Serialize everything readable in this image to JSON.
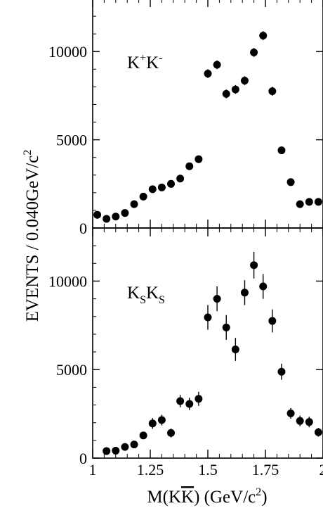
{
  "figure": {
    "ylabel": "EVENTS / 0.040GeV/c",
    "ylabel_sup": "2",
    "xlabel_pre": "M(K",
    "xlabel_kbar": "K",
    "xlabel_post": ") (GeV/c",
    "xlabel_sup": "2",
    "xlabel_close": ")",
    "marker_color": "#000000"
  },
  "chart_data": [
    {
      "type": "scatter",
      "panel": "top",
      "label": {
        "base1": "K",
        "sup1": "+",
        "base2": "K",
        "sup2": "-"
      },
      "xlim": [
        1.0,
        2.0
      ],
      "ylim": [
        0,
        13000
      ],
      "y_ticks": [
        0,
        5000,
        10000
      ],
      "x_ticks": [
        1.0,
        1.25,
        1.5,
        1.75,
        2.0
      ],
      "x_tick_labels": [],
      "y_tick_labels": [
        "0",
        "5000",
        "10000"
      ],
      "grid": false,
      "points": [
        {
          "x": 1.02,
          "y": 750,
          "err": 100
        },
        {
          "x": 1.06,
          "y": 520,
          "err": 100
        },
        {
          "x": 1.1,
          "y": 650,
          "err": 100
        },
        {
          "x": 1.14,
          "y": 850,
          "err": 100
        },
        {
          "x": 1.18,
          "y": 1350,
          "err": 100
        },
        {
          "x": 1.22,
          "y": 1780,
          "err": 100
        },
        {
          "x": 1.26,
          "y": 2200,
          "err": 110
        },
        {
          "x": 1.3,
          "y": 2300,
          "err": 110
        },
        {
          "x": 1.34,
          "y": 2500,
          "err": 110
        },
        {
          "x": 1.38,
          "y": 2800,
          "err": 120
        },
        {
          "x": 1.42,
          "y": 3500,
          "err": 120
        },
        {
          "x": 1.46,
          "y": 3900,
          "err": 150
        },
        {
          "x": 1.5,
          "y": 8750,
          "err": 250
        },
        {
          "x": 1.54,
          "y": 9250,
          "err": 250
        },
        {
          "x": 1.58,
          "y": 7600,
          "err": 250
        },
        {
          "x": 1.62,
          "y": 7850,
          "err": 250
        },
        {
          "x": 1.66,
          "y": 8350,
          "err": 250
        },
        {
          "x": 1.7,
          "y": 9950,
          "err": 250
        },
        {
          "x": 1.74,
          "y": 10900,
          "err": 250
        },
        {
          "x": 1.78,
          "y": 7750,
          "err": 250
        },
        {
          "x": 1.82,
          "y": 4400,
          "err": 120
        },
        {
          "x": 1.86,
          "y": 2600,
          "err": 110
        },
        {
          "x": 1.9,
          "y": 1350,
          "err": 100
        },
        {
          "x": 1.94,
          "y": 1480,
          "err": 100
        },
        {
          "x": 1.98,
          "y": 1480,
          "err": 100
        }
      ]
    },
    {
      "type": "scatter",
      "panel": "bottom",
      "label": {
        "base1": "K",
        "sub1": "S",
        "base2": "K",
        "sub2": "S"
      },
      "xlim": [
        1.0,
        2.0
      ],
      "ylim": [
        0,
        13000
      ],
      "y_ticks": [
        0,
        5000,
        10000
      ],
      "x_ticks": [
        1.0,
        1.25,
        1.5,
        1.75,
        2.0
      ],
      "x_tick_labels": [
        "1",
        "1.25",
        "1.5",
        "1.75",
        "2"
      ],
      "y_tick_labels": [
        "0",
        "5000",
        "10000"
      ],
      "grid": false,
      "points": [
        {
          "x": 1.06,
          "y": 400,
          "err": 150
        },
        {
          "x": 1.1,
          "y": 420,
          "err": 150
        },
        {
          "x": 1.14,
          "y": 630,
          "err": 150
        },
        {
          "x": 1.18,
          "y": 770,
          "err": 150
        },
        {
          "x": 1.22,
          "y": 1280,
          "err": 200
        },
        {
          "x": 1.26,
          "y": 1960,
          "err": 300
        },
        {
          "x": 1.3,
          "y": 2150,
          "err": 300
        },
        {
          "x": 1.34,
          "y": 1420,
          "err": 250
        },
        {
          "x": 1.38,
          "y": 3220,
          "err": 350
        },
        {
          "x": 1.42,
          "y": 3060,
          "err": 350
        },
        {
          "x": 1.46,
          "y": 3350,
          "err": 400
        },
        {
          "x": 1.5,
          "y": 7950,
          "err": 700
        },
        {
          "x": 1.54,
          "y": 9000,
          "err": 700
        },
        {
          "x": 1.58,
          "y": 7380,
          "err": 700
        },
        {
          "x": 1.62,
          "y": 6140,
          "err": 650
        },
        {
          "x": 1.66,
          "y": 9350,
          "err": 700
        },
        {
          "x": 1.7,
          "y": 10900,
          "err": 750
        },
        {
          "x": 1.74,
          "y": 9700,
          "err": 700
        },
        {
          "x": 1.78,
          "y": 7750,
          "err": 650
        },
        {
          "x": 1.82,
          "y": 4880,
          "err": 450
        },
        {
          "x": 1.86,
          "y": 2530,
          "err": 300
        },
        {
          "x": 1.9,
          "y": 2100,
          "err": 300
        },
        {
          "x": 1.94,
          "y": 2040,
          "err": 300
        },
        {
          "x": 1.98,
          "y": 1460,
          "err": 250
        }
      ]
    }
  ]
}
